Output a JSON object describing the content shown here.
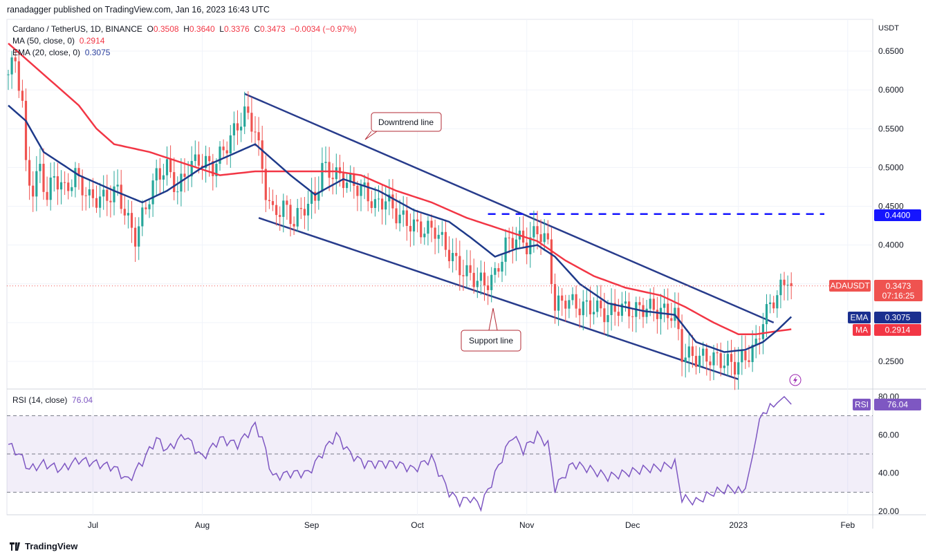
{
  "header": {
    "published": "ranadagger published on TradingView.com, Jan 16, 2023 16:43 UTC"
  },
  "legend": {
    "symbol": "Cardano / TetherUS, 1D, BINANCE",
    "o_label": "O",
    "o": "0.3508",
    "h_label": "H",
    "h": "0.3640",
    "l_label": "L",
    "l": "0.3376",
    "c_label": "C",
    "c": "0.3473",
    "change": "−0.0034 (−0.97%)",
    "ma_label": "MA (50, close, 0)",
    "ma_value": "0.2914",
    "ema_label": "EMA (20, close, 0)",
    "ema_value": "0.3075",
    "rsi_label": "RSI (14, close)",
    "rsi_value": "76.04"
  },
  "axis": {
    "currency": "USDT",
    "price_ticks": [
      "0.6500",
      "0.6000",
      "0.5500",
      "0.5000",
      "0.4500",
      "0.4000",
      "0.2500"
    ],
    "price_tick_values": [
      0.65,
      0.6,
      0.55,
      0.5,
      0.45,
      0.4,
      0.25
    ],
    "rsi_ticks": [
      "80.00",
      "60.00",
      "40.00",
      "20.00"
    ],
    "rsi_tick_values": [
      80,
      60,
      40,
      20
    ],
    "months": [
      {
        "label": "Jul",
        "day": 24
      },
      {
        "label": "Aug",
        "day": 55
      },
      {
        "label": "Sep",
        "day": 86
      },
      {
        "label": "Oct",
        "day": 116
      },
      {
        "label": "Nov",
        "day": 147
      },
      {
        "label": "Dec",
        "day": 177
      },
      {
        "label": "2023",
        "day": 207
      },
      {
        "label": "Feb",
        "day": 238
      }
    ]
  },
  "price_labels": {
    "level": "0.4400",
    "symbol": "ADAUSDT",
    "last": "0.3473",
    "countdown": "07:16:25",
    "ema_tag": "EMA",
    "ema": "0.3075",
    "ma_tag": "MA",
    "ma": "0.2914",
    "rsi_tag": "RSI",
    "rsi": "76.04"
  },
  "annotations": {
    "downtrend": "Downtrend line",
    "support": "Support line"
  },
  "colors": {
    "up": "#26a69a",
    "down": "#ef5350",
    "ema": "#1e3a8a",
    "ma": "#f23645",
    "rsi": "#7e57c2",
    "trend": "#283c8c",
    "level": "#1515ff"
  },
  "footer": {
    "brand": "TradingView"
  },
  "chart_data": {
    "type": "candlestick",
    "title": "Cardano / TetherUS, 1D, BINANCE",
    "x_unit": "day index",
    "ylim": [
      0.22,
      0.67
    ],
    "close_path": [
      [
        0,
        0.62
      ],
      [
        2,
        0.64
      ],
      [
        4,
        0.58
      ],
      [
        5,
        0.5
      ],
      [
        7,
        0.47
      ],
      [
        9,
        0.5
      ],
      [
        11,
        0.46
      ],
      [
        13,
        0.49
      ],
      [
        16,
        0.47
      ],
      [
        19,
        0.49
      ],
      [
        23,
        0.46
      ],
      [
        27,
        0.46
      ],
      [
        31,
        0.47
      ],
      [
        34,
        0.43
      ],
      [
        36,
        0.41
      ],
      [
        39,
        0.45
      ],
      [
        42,
        0.49
      ],
      [
        45,
        0.5
      ],
      [
        48,
        0.47
      ],
      [
        51,
        0.5
      ],
      [
        54,
        0.51
      ],
      [
        58,
        0.5
      ],
      [
        62,
        0.53
      ],
      [
        67,
        0.57
      ],
      [
        70,
        0.55
      ],
      [
        73,
        0.47
      ],
      [
        75,
        0.44
      ],
      [
        78,
        0.45
      ],
      [
        81,
        0.43
      ],
      [
        84,
        0.45
      ],
      [
        87,
        0.46
      ],
      [
        89,
        0.5
      ],
      [
        93,
        0.49
      ],
      [
        97,
        0.48
      ],
      [
        101,
        0.47
      ],
      [
        104,
        0.45
      ],
      [
        107,
        0.46
      ],
      [
        110,
        0.44
      ],
      [
        113,
        0.43
      ],
      [
        117,
        0.42
      ],
      [
        121,
        0.42
      ],
      [
        125,
        0.39
      ],
      [
        128,
        0.37
      ],
      [
        131,
        0.36
      ],
      [
        135,
        0.35
      ],
      [
        138,
        0.36
      ],
      [
        141,
        0.4
      ],
      [
        144,
        0.41
      ],
      [
        147,
        0.4
      ],
      [
        150,
        0.42
      ],
      [
        153,
        0.4
      ],
      [
        155,
        0.32
      ],
      [
        158,
        0.33
      ],
      [
        162,
        0.32
      ],
      [
        166,
        0.32
      ],
      [
        170,
        0.31
      ],
      [
        173,
        0.32
      ],
      [
        177,
        0.315
      ],
      [
        181,
        0.32
      ],
      [
        185,
        0.315
      ],
      [
        189,
        0.31
      ],
      [
        191,
        0.26
      ],
      [
        195,
        0.255
      ],
      [
        199,
        0.255
      ],
      [
        203,
        0.25
      ],
      [
        206,
        0.245
      ],
      [
        209,
        0.255
      ],
      [
        212,
        0.27
      ],
      [
        214,
        0.305
      ],
      [
        217,
        0.33
      ],
      [
        220,
        0.35
      ],
      [
        222,
        0.3473
      ]
    ],
    "ema20": [
      [
        0,
        0.58
      ],
      [
        5,
        0.56
      ],
      [
        10,
        0.52
      ],
      [
        20,
        0.49
      ],
      [
        30,
        0.47
      ],
      [
        38,
        0.455
      ],
      [
        45,
        0.47
      ],
      [
        55,
        0.5
      ],
      [
        65,
        0.52
      ],
      [
        70,
        0.53
      ],
      [
        75,
        0.51
      ],
      [
        80,
        0.49
      ],
      [
        87,
        0.465
      ],
      [
        95,
        0.485
      ],
      [
        105,
        0.47
      ],
      [
        115,
        0.445
      ],
      [
        125,
        0.43
      ],
      [
        131,
        0.41
      ],
      [
        138,
        0.385
      ],
      [
        144,
        0.395
      ],
      [
        150,
        0.4
      ],
      [
        155,
        0.385
      ],
      [
        162,
        0.35
      ],
      [
        170,
        0.325
      ],
      [
        180,
        0.315
      ],
      [
        189,
        0.31
      ],
      [
        195,
        0.275
      ],
      [
        203,
        0.262
      ],
      [
        209,
        0.265
      ],
      [
        214,
        0.275
      ],
      [
        218,
        0.29
      ],
      [
        222,
        0.3075
      ]
    ],
    "ma50": [
      [
        0,
        0.66
      ],
      [
        10,
        0.62
      ],
      [
        20,
        0.58
      ],
      [
        25,
        0.55
      ],
      [
        30,
        0.53
      ],
      [
        40,
        0.52
      ],
      [
        50,
        0.505
      ],
      [
        60,
        0.49
      ],
      [
        70,
        0.495
      ],
      [
        80,
        0.495
      ],
      [
        93,
        0.495
      ],
      [
        100,
        0.49
      ],
      [
        110,
        0.47
      ],
      [
        120,
        0.455
      ],
      [
        130,
        0.435
      ],
      [
        140,
        0.42
      ],
      [
        150,
        0.405
      ],
      [
        158,
        0.38
      ],
      [
        166,
        0.36
      ],
      [
        175,
        0.345
      ],
      [
        185,
        0.335
      ],
      [
        192,
        0.32
      ],
      [
        200,
        0.3
      ],
      [
        207,
        0.285
      ],
      [
        212,
        0.285
      ],
      [
        218,
        0.289
      ],
      [
        222,
        0.2914
      ]
    ],
    "rsi14": [
      [
        0,
        55
      ],
      [
        3,
        50
      ],
      [
        6,
        42
      ],
      [
        10,
        45
      ],
      [
        15,
        42
      ],
      [
        20,
        47
      ],
      [
        25,
        45
      ],
      [
        30,
        43
      ],
      [
        34,
        36
      ],
      [
        38,
        46
      ],
      [
        42,
        58
      ],
      [
        45,
        52
      ],
      [
        50,
        60
      ],
      [
        55,
        48
      ],
      [
        60,
        58
      ],
      [
        65,
        55
      ],
      [
        70,
        65
      ],
      [
        72,
        58
      ],
      [
        75,
        38
      ],
      [
        80,
        40
      ],
      [
        85,
        40
      ],
      [
        90,
        53
      ],
      [
        93,
        60
      ],
      [
        97,
        50
      ],
      [
        101,
        45
      ],
      [
        110,
        45
      ],
      [
        115,
        42
      ],
      [
        120,
        48
      ],
      [
        125,
        30
      ],
      [
        128,
        25
      ],
      [
        131,
        27
      ],
      [
        134,
        23
      ],
      [
        137,
        35
      ],
      [
        140,
        48
      ],
      [
        143,
        60
      ],
      [
        146,
        52
      ],
      [
        150,
        60
      ],
      [
        153,
        55
      ],
      [
        155,
        32
      ],
      [
        160,
        45
      ],
      [
        165,
        42
      ],
      [
        170,
        38
      ],
      [
        175,
        40
      ],
      [
        180,
        42
      ],
      [
        185,
        43
      ],
      [
        189,
        45
      ],
      [
        191,
        27
      ],
      [
        195,
        25
      ],
      [
        200,
        30
      ],
      [
        205,
        32
      ],
      [
        208,
        30
      ],
      [
        210,
        38
      ],
      [
        212,
        60
      ],
      [
        214,
        72
      ],
      [
        217,
        75
      ],
      [
        220,
        80
      ],
      [
        222,
        76
      ]
    ],
    "rsi_bands": [
      70,
      50,
      30
    ],
    "downtrend_line": [
      [
        67,
        0.595
      ],
      [
        217,
        0.3
      ]
    ],
    "support_line": [
      [
        71,
        0.435
      ],
      [
        207,
        0.227
      ]
    ],
    "horizontal_level": {
      "value": 0.44,
      "from_day": 136
    }
  }
}
